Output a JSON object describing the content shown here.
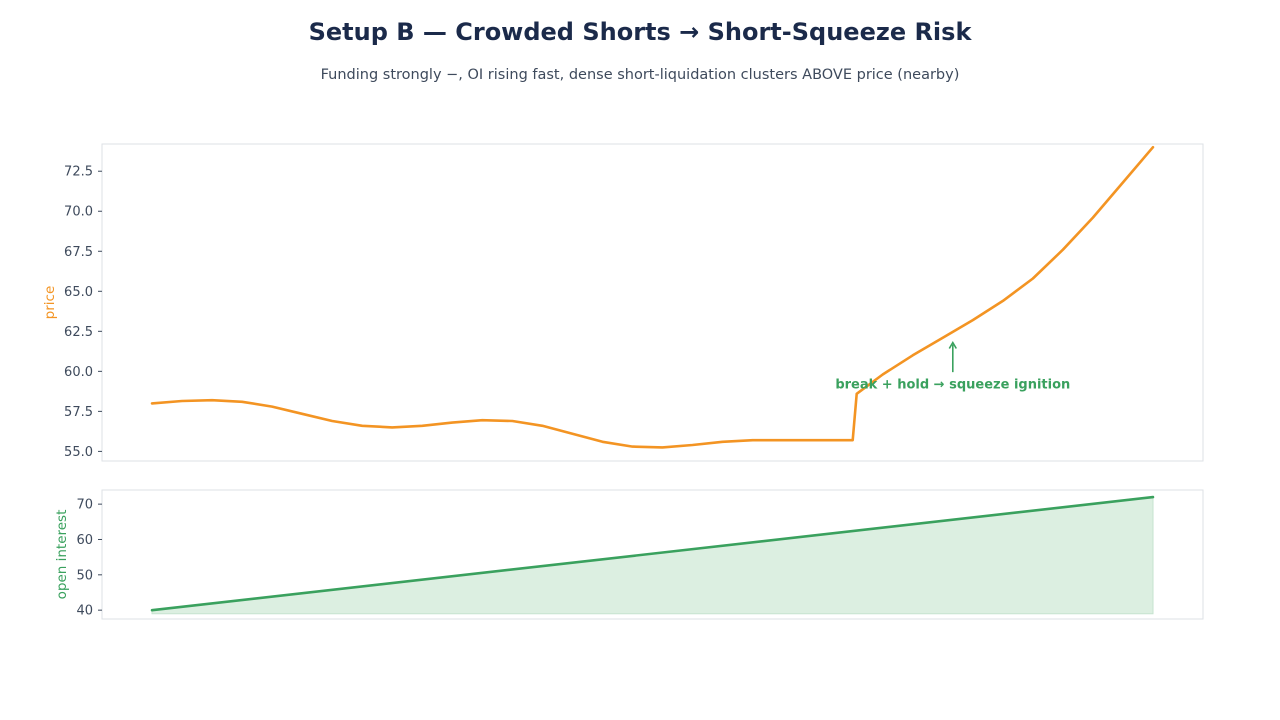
{
  "title": "Setup B — Crowded Shorts → Short-Squeeze Risk",
  "subtitle": "Funding strongly −, OI rising fast, dense short-liquidation clusters ABOVE price (nearby)",
  "colors": {
    "price": "#f39423",
    "oi": "#3aa15e",
    "oi_fill": "#dcefe1",
    "frame": "#dde1e6",
    "tick_text": "#3e4a5c",
    "title": "#1b2a4a"
  },
  "chart_data": [
    {
      "type": "line",
      "ylabel": "price",
      "ylim": [
        54.4,
        74.2
      ],
      "yticks": [
        55.0,
        57.5,
        60.0,
        62.5,
        65.0,
        67.5,
        70.0,
        72.5
      ],
      "ytick_labels": [
        "55.0",
        "57.5",
        "60.0",
        "62.5",
        "65.0",
        "67.5",
        "70.0",
        "72.5"
      ],
      "xlim": [
        0,
        100
      ],
      "series": [
        {
          "color": "#f39423",
          "x": [
            0,
            3,
            6,
            9,
            12,
            15,
            18,
            21,
            24,
            27,
            30,
            33,
            36,
            39,
            42,
            45,
            48,
            51,
            54,
            57,
            60,
            63,
            66,
            69,
            70,
            70.4,
            73,
            76,
            79,
            82,
            85,
            88,
            91,
            94,
            97,
            100
          ],
          "y": [
            58.0,
            58.15,
            58.2,
            58.1,
            57.8,
            57.35,
            56.9,
            56.6,
            56.5,
            56.6,
            56.8,
            56.95,
            56.9,
            56.6,
            56.1,
            55.6,
            55.3,
            55.25,
            55.4,
            55.6,
            55.7,
            55.7,
            55.7,
            55.7,
            55.7,
            58.6,
            59.8,
            61.0,
            62.1,
            63.2,
            64.4,
            65.8,
            67.6,
            69.6,
            71.8,
            74.0
          ]
        }
      ],
      "annotations": [
        {
          "text": "break + hold → squeeze ignition",
          "x": 80,
          "y": 59.2,
          "arrow_to_y": 61.8
        }
      ]
    },
    {
      "type": "area",
      "ylabel": "open interest",
      "ylim": [
        37.5,
        74
      ],
      "yticks": [
        40,
        50,
        60,
        70
      ],
      "ytick_labels": [
        "40",
        "50",
        "60",
        "70"
      ],
      "xlim": [
        0,
        100
      ],
      "fill_baseline": 39,
      "series": [
        {
          "color": "#3aa15e",
          "x": [
            0,
            100
          ],
          "y": [
            40,
            72
          ]
        }
      ]
    }
  ]
}
